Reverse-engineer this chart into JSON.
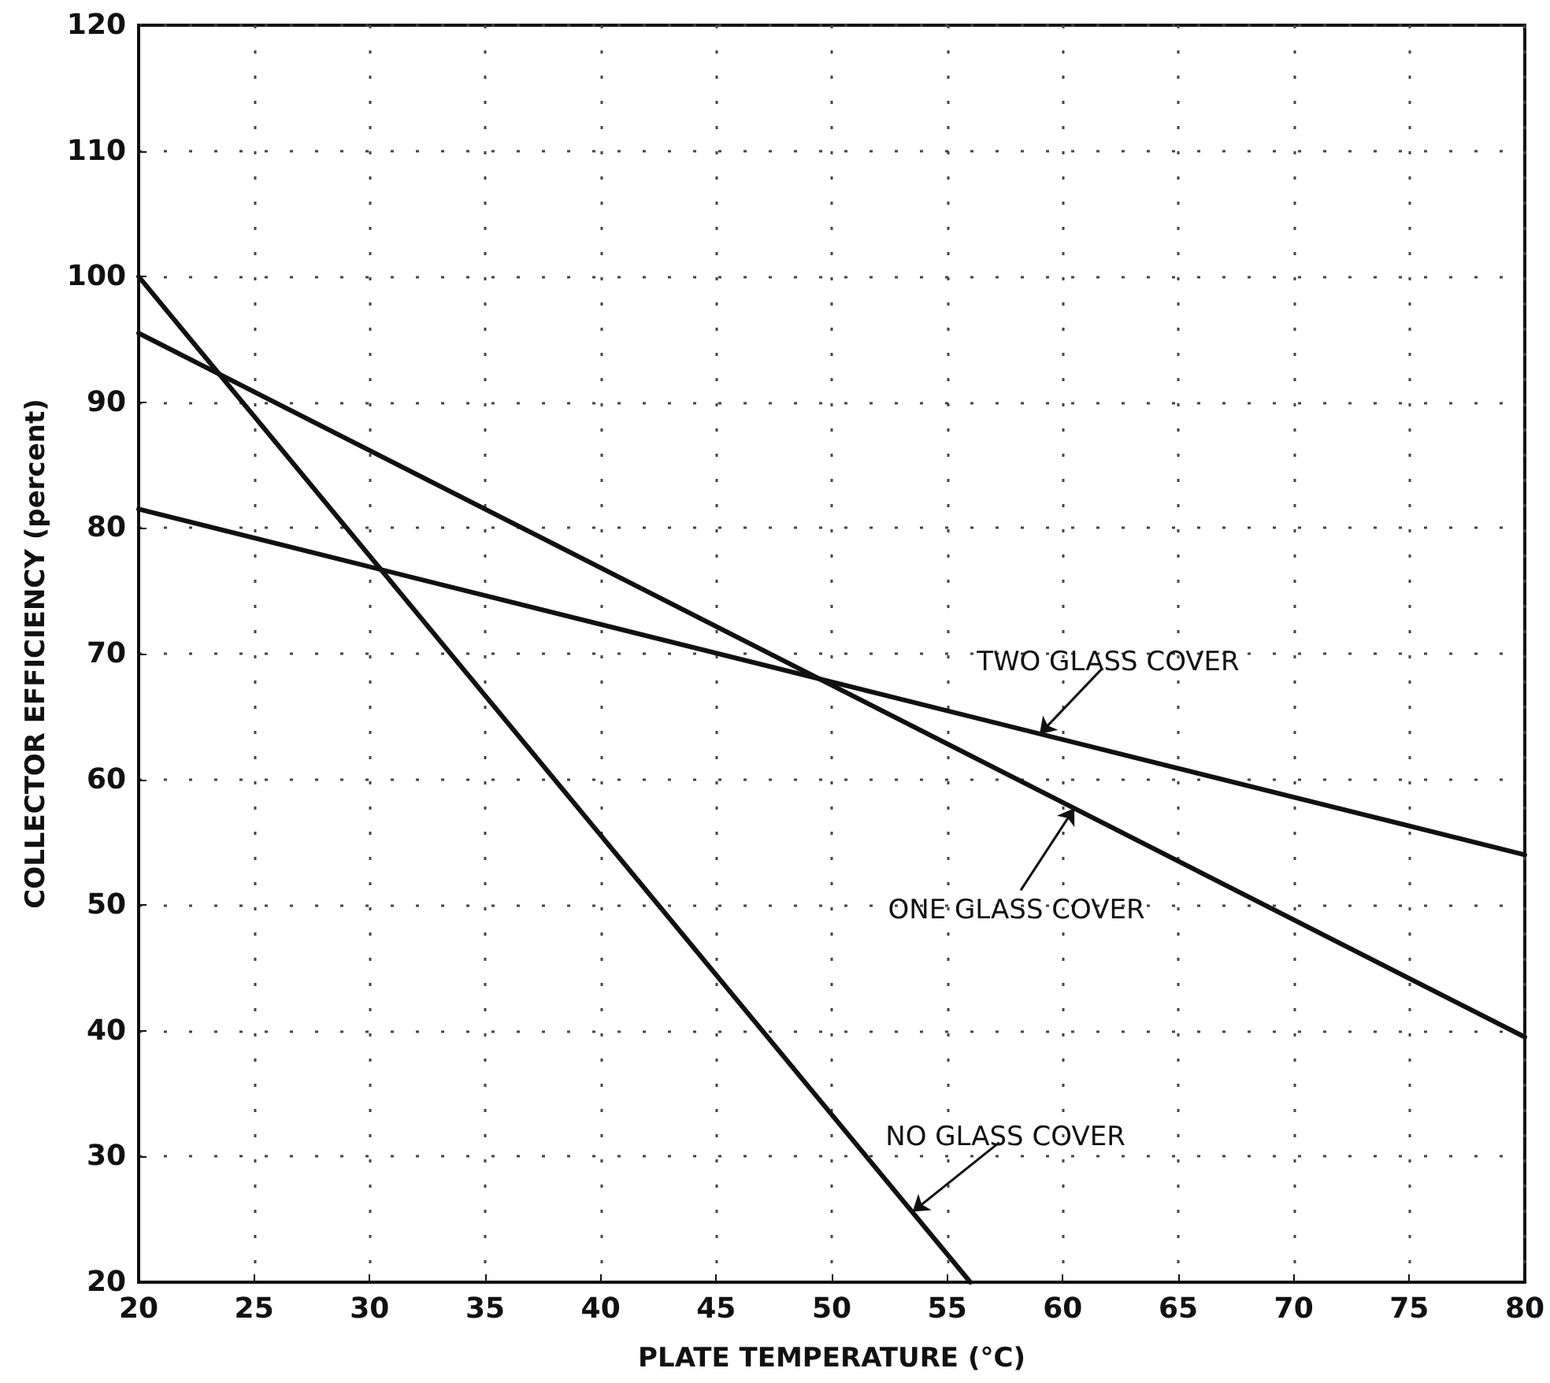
{
  "chart_data": {
    "type": "line",
    "xlabel": "PLATE TEMPERATURE (°C)",
    "ylabel": "COLLECTOR EFFICIENCY (percent)",
    "series": [
      {
        "color": "#111111",
        "x": [
          20,
          56
        ],
        "values": [
          100,
          20
        ]
      },
      {
        "color": "#111111",
        "x": [
          20,
          80
        ],
        "values": [
          95.5,
          39.5
        ]
      },
      {
        "color": "#111111",
        "x": [
          20,
          80
        ],
        "values": [
          81.5,
          54
        ]
      }
    ],
    "annotations": [
      {
        "text": "TWO GLASS COVER",
        "x": 59,
        "y": 63.6
      },
      {
        "text": "ONE GLASS COVER",
        "x": 60.5,
        "y": 57.7
      },
      {
        "text": "NO GLASS COVER",
        "x": 53.5,
        "y": 25.6
      }
    ],
    "xlim": [
      20,
      80
    ],
    "xticks": [
      20,
      25,
      30,
      35,
      40,
      45,
      50,
      55,
      60,
      65,
      70,
      75,
      80
    ],
    "ylim": [
      20,
      120
    ],
    "yticks": [
      20,
      30,
      40,
      50,
      60,
      70,
      80,
      90,
      100,
      110,
      120
    ],
    "grid": true,
    "marker": "none",
    "line_style": "solid"
  }
}
